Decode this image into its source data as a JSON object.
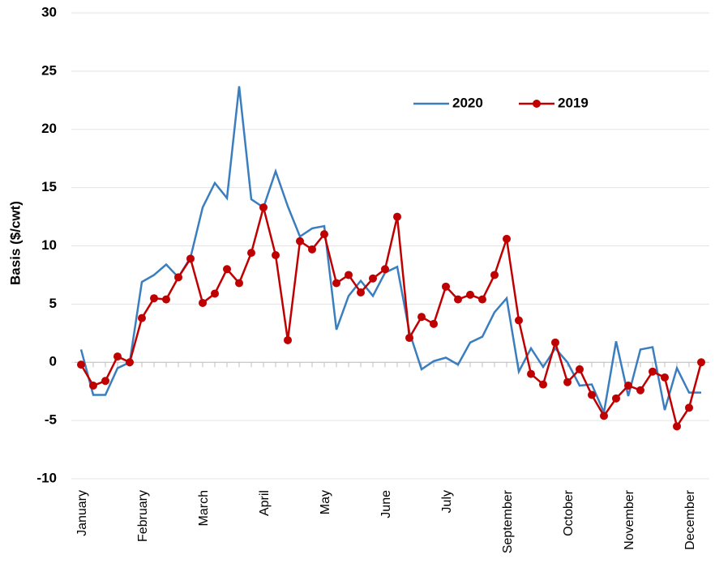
{
  "chart_data": {
    "type": "line",
    "y_label": "Basis ($/cwt)",
    "categories": [
      "January",
      null,
      null,
      null,
      null,
      "February",
      null,
      null,
      null,
      null,
      "March",
      null,
      null,
      null,
      null,
      "April",
      null,
      null,
      null,
      null,
      "May",
      null,
      null,
      null,
      null,
      "June",
      null,
      null,
      null,
      null,
      "July",
      null,
      null,
      null,
      null,
      "September",
      null,
      null,
      null,
      null,
      "October",
      null,
      null,
      null,
      null,
      "November",
      null,
      null,
      null,
      null,
      "December",
      null
    ],
    "series": [
      {
        "name": "2020",
        "color": "#3a7ebf",
        "marker": false,
        "values": [
          1.1,
          -2.8,
          -2.8,
          -0.5,
          0,
          6.9,
          7.5,
          8.4,
          7.3,
          9.0,
          13.3,
          15.4,
          14.1,
          23.7,
          14.0,
          13.3,
          16.4,
          13.4,
          10.8,
          11.5,
          11.7,
          2.8,
          5.7,
          7.0,
          5.7,
          7.7,
          8.2,
          2.6,
          -0.6,
          0.1,
          0.4,
          -0.2,
          1.7,
          2.2,
          4.3,
          5.5,
          -0.8,
          1.2,
          -0.4,
          1.2,
          0,
          -2.0,
          -1.9,
          -4.3,
          1.8,
          -2.9,
          1.1,
          1.3,
          -4.1,
          -0.5,
          -2.6,
          -2.6
        ]
      },
      {
        "name": "2019",
        "color": "#c00000",
        "marker": true,
        "values": [
          -0.2,
          -2.0,
          -1.6,
          0.5,
          0,
          3.8,
          5.5,
          5.4,
          7.3,
          8.9,
          5.1,
          5.9,
          8.0,
          6.8,
          9.4,
          13.3,
          9.2,
          1.9,
          10.4,
          9.7,
          11.0,
          6.8,
          7.5,
          6.0,
          7.2,
          8.0,
          12.5,
          2.1,
          3.9,
          3.3,
          6.5,
          5.4,
          5.8,
          5.4,
          7.5,
          10.6,
          3.6,
          -1.0,
          -1.9,
          1.7,
          -1.7,
          -0.6,
          -2.8,
          -4.6,
          -3.1,
          -2.0,
          -2.4,
          -0.8,
          -1.3,
          -5.5,
          -3.9,
          0.0
        ]
      }
    ],
    "ylim": [
      -10,
      30
    ],
    "yticks": [
      -10,
      -5,
      0,
      5,
      10,
      15,
      20,
      25,
      30
    ],
    "grid": true
  }
}
